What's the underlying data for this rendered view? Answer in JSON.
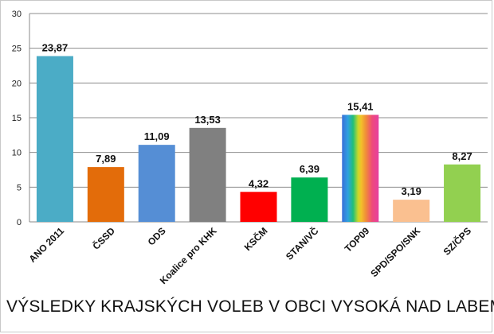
{
  "chart_data": {
    "type": "bar",
    "title": "VÝSLEDKY KRAJSKÝCH VOLEB V OBCI VYSOKÁ NAD LABEM",
    "categories": [
      "ANO 2011",
      "ČSSD",
      "ODS",
      "Koalice pro KHK",
      "KSČM",
      "STAN/VČ",
      "TOP09",
      "SPD/SPO/SNK",
      "SZ/ČPS"
    ],
    "values": [
      23.87,
      7.89,
      11.09,
      13.53,
      4.32,
      6.39,
      15.41,
      3.19,
      8.27
    ],
    "value_labels": [
      "23,87",
      "7,89",
      "11,09",
      "13,53",
      "4,32",
      "6,39",
      "15,41",
      "3,19",
      "8,27"
    ],
    "colors": [
      "#4bacc6",
      "#e36c0a",
      "#558ed5",
      "#808080",
      "#ff0000",
      "#00b050",
      "rainbow",
      "#fac090",
      "#92d050"
    ],
    "ylim": [
      0,
      30
    ],
    "yticks": [
      "0",
      "5",
      "10",
      "15",
      "20",
      "25",
      "30"
    ],
    "grid": true,
    "xlabel": "",
    "ylabel": ""
  }
}
